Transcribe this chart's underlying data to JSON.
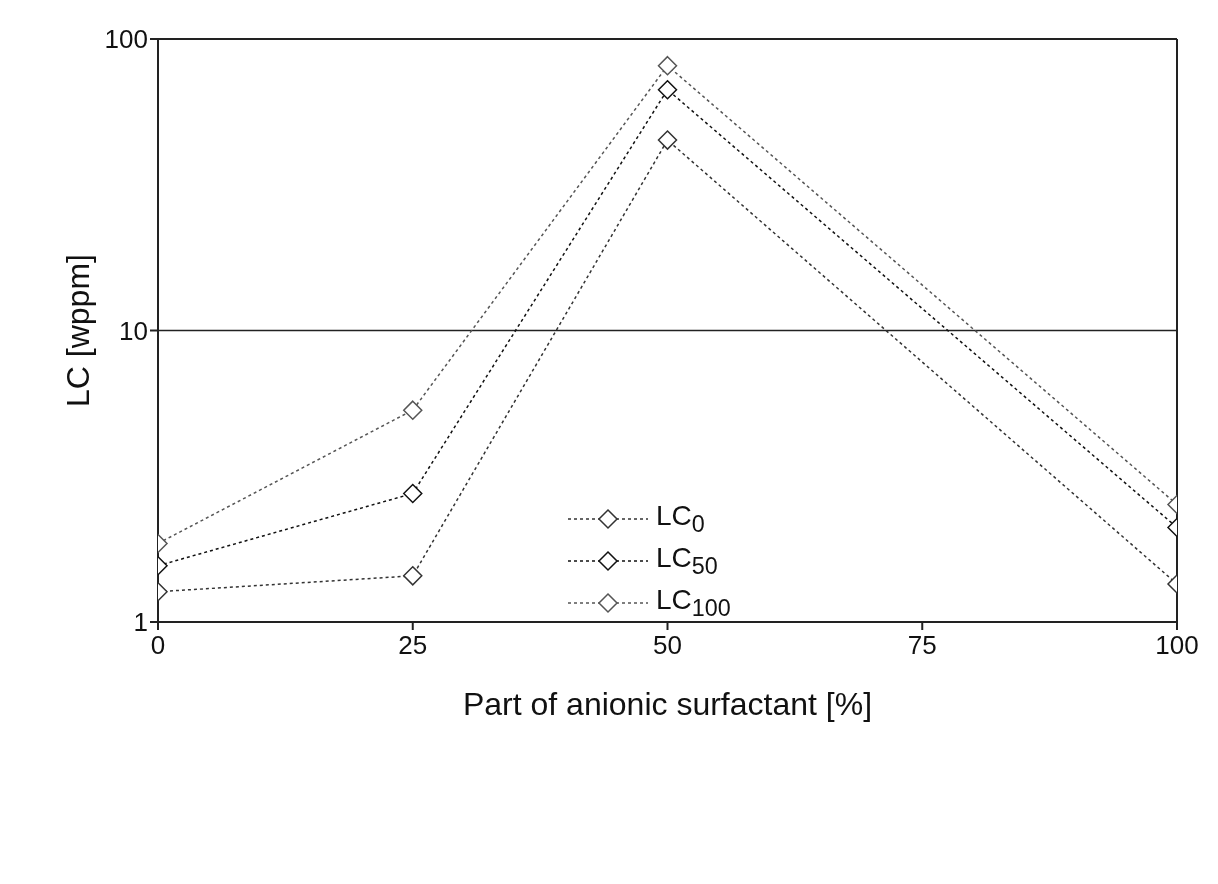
{
  "chart_data": {
    "type": "line",
    "xlabel": "Part of anionic surfactant [%]",
    "ylabel": "LC [wppm]",
    "x": [
      0,
      25,
      50,
      100
    ],
    "series": [
      {
        "name": "LC$_{0}$",
        "color": "#333333",
        "values": [
          1.27,
          1.44,
          45,
          1.35
        ]
      },
      {
        "name": "LC$_{50}$",
        "color": "#111111",
        "values": [
          1.56,
          2.76,
          67,
          2.11
        ]
      },
      {
        "name": "LC$_{100}$",
        "color": "#555555",
        "values": [
          1.86,
          5.33,
          81,
          2.53
        ]
      }
    ],
    "xlim": [
      0,
      100
    ],
    "xticks": [
      0,
      25,
      50,
      75,
      100
    ],
    "ylim": [
      1,
      100
    ],
    "yticks": [
      1,
      10,
      100
    ],
    "log": "y",
    "grid": "y",
    "legend": "center",
    "marker": "diamond",
    "line_style": "dotted"
  }
}
